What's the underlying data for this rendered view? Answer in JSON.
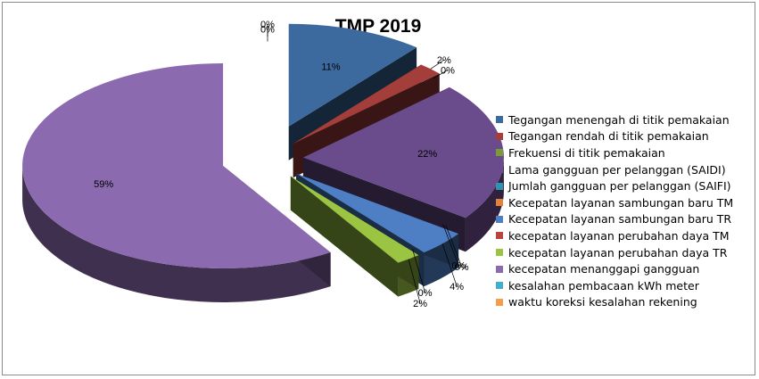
{
  "chart_data": {
    "type": "pie",
    "title": "TMP 2019",
    "categories": [
      "Tegangan menengah di titik pemakaian",
      "Tegangan rendah di titik pemakaian",
      "Frekuensi di titik pemakaian",
      "Lama gangguan per pelanggan (SAIDI)",
      "Jumlah gangguan per pelanggan (SAIFI)",
      "Kecepatan layanan sambungan baru TM",
      "Kecepatan layanan sambungan baru TR",
      "kecepatan layanan perubahan daya TM",
      "kecepatan layanan perubahan daya TR",
      "kecepatan menanggapi gangguan",
      "kesalahan pembacaan kWh meter",
      "waktu koreksi kesalahan rekening"
    ],
    "values": [
      11,
      2,
      0,
      22,
      0,
      0,
      4,
      0,
      2,
      59,
      0,
      0
    ],
    "data_labels": [
      "11%",
      "2%",
      "0%",
      "22%",
      "0%",
      "0%",
      "4%",
      "0%",
      "2%",
      "59%",
      "0%",
      "0%"
    ],
    "colors": [
      "#3C6A9F",
      "#A33E3B",
      "#7C9A36",
      "#6A4C8C",
      "#2F93B0",
      "#E0823A",
      "#4E7FC4",
      "#B8433F",
      "#9BC443",
      "#8B6AB0",
      "#43AFC9",
      "#F29E4C"
    ],
    "legend_position": "right"
  }
}
